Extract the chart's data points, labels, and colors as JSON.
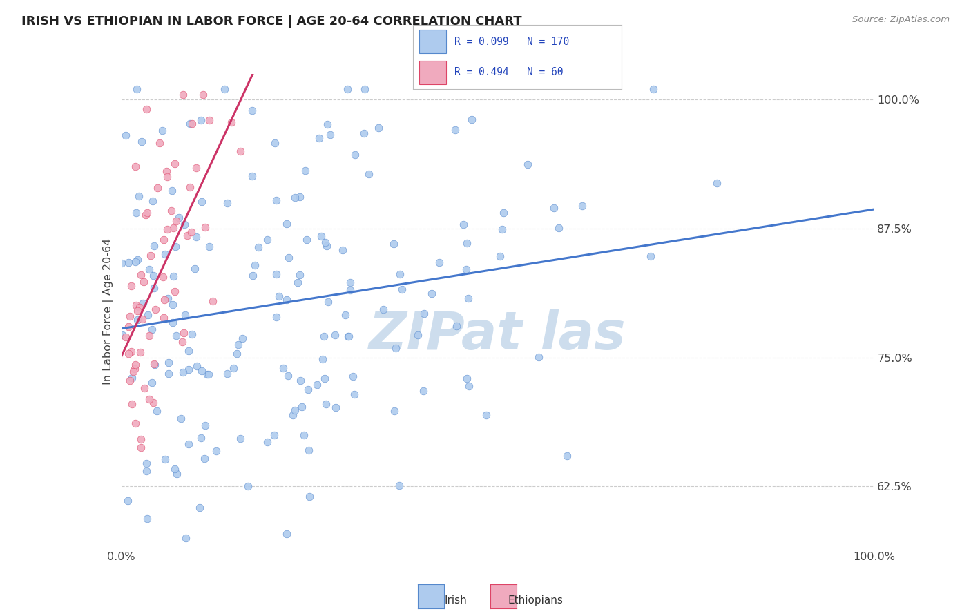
{
  "title": "IRISH VS ETHIOPIAN IN LABOR FORCE | AGE 20-64 CORRELATION CHART",
  "source_text": "Source: ZipAtlas.com",
  "ylabel": "In Labor Force | Age 20-64",
  "xlim": [
    0.0,
    1.0
  ],
  "ylim": [
    0.565,
    1.025
  ],
  "yticks": [
    0.625,
    0.75,
    0.875,
    1.0
  ],
  "ytick_labels": [
    "62.5%",
    "75.0%",
    "87.5%",
    "100.0%"
  ],
  "xtick_labels": [
    "0.0%",
    "100.0%"
  ],
  "irish_R": 0.099,
  "irish_N": 170,
  "ethiopian_R": 0.494,
  "ethiopian_N": 60,
  "irish_color": "#aecbee",
  "ethiopian_color": "#f0aabe",
  "irish_edge_color": "#5588cc",
  "ethiopian_edge_color": "#dd4466",
  "irish_line_color": "#4477cc",
  "ethiopian_line_color": "#cc3366",
  "watermark_color": "#c5d8ea",
  "title_color": "#222222",
  "legend_text_color": "#2244bb",
  "background_color": "#ffffff",
  "grid_color": "#cccccc",
  "seed": 12345
}
